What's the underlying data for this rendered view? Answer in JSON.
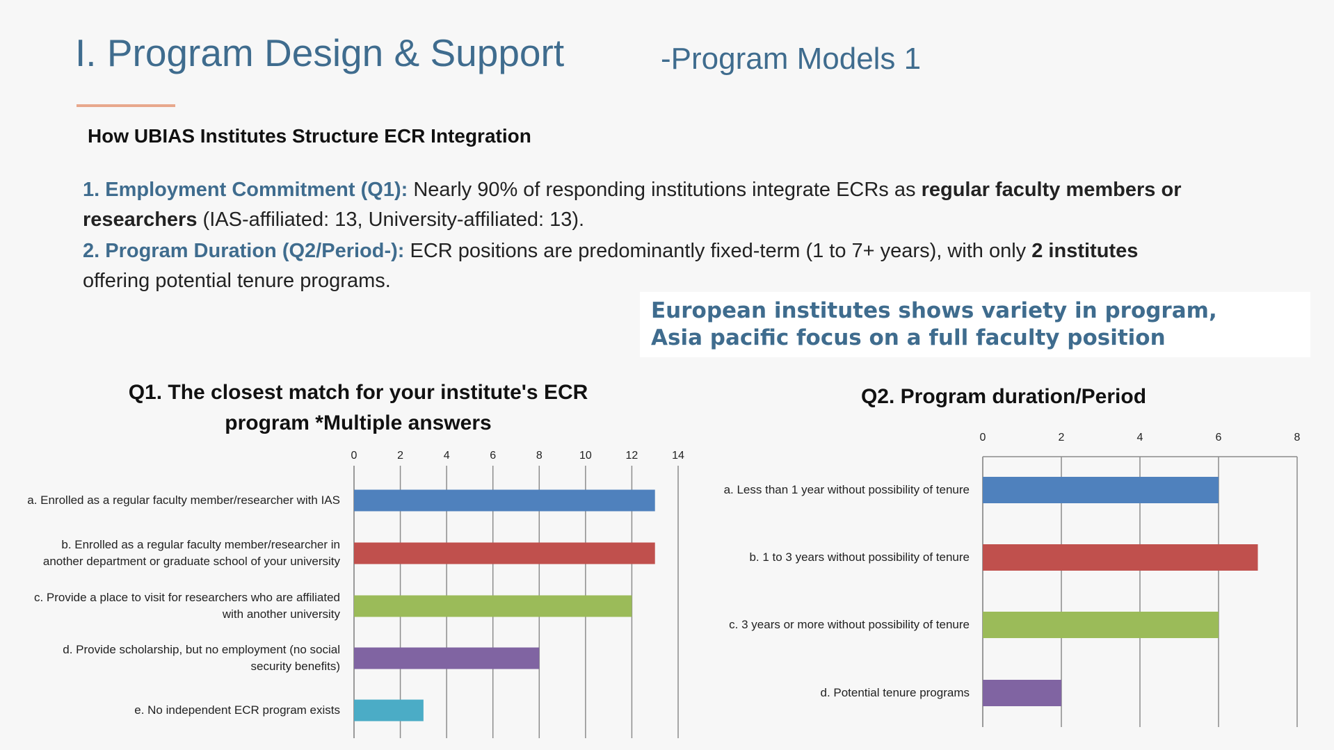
{
  "header": {
    "title": "I. Program Design & Support",
    "subtitle": "-Program Models 1"
  },
  "heading": "How UBIAS Institutes Structure ECR Integration",
  "points": [
    {
      "parts": [
        "1. Employment Commitment (Q1):",
        " Nearly 90% of responding institutions integrate ECRs as ",
        "regular faculty members or researchers",
        " (IAS-affiliated: 13, University-affiliated: 13)."
      ]
    },
    {
      "parts": [
        "2. Program Duration (Q2/Period-):",
        " ECR positions are predominantly fixed-term (1 to 7+ years), with only ",
        "2 institutes",
        " offering potential tenure programs."
      ]
    }
  ],
  "callout": [
    "European institutes shows variety in program,",
    "Asia pacific focus on a full faculty position"
  ],
  "chart_data": [
    {
      "type": "bar",
      "orientation": "horizontal",
      "title": "Q1. The closest match for your institute's ECR program *Multiple answers",
      "categories": [
        "a. Enrolled as a regular faculty member/researcher with IAS",
        "b. Enrolled as a regular faculty member/researcher in another department or graduate school of your university",
        "c. Provide a place to visit for researchers who are affiliated with another university",
        "d. Provide scholarship, but no employment (no social security benefits)",
        "e. No independent ECR program exists"
      ],
      "values": [
        13,
        13,
        12,
        8,
        3
      ],
      "colors": [
        "#4f81bd",
        "#c0504d",
        "#9bbb59",
        "#8064a2",
        "#4bacc6"
      ],
      "xlim": [
        0,
        14
      ],
      "xticks": [
        0,
        2,
        4,
        6,
        8,
        10,
        12,
        14
      ],
      "grid": true
    },
    {
      "type": "bar",
      "orientation": "horizontal",
      "title": "Q2. Program duration/Period",
      "categories": [
        "a. Less than 1 year without possibility of tenure",
        "b. 1 to 3 years without possibility of tenure",
        "c. 3 years or more without possibility of tenure",
        "d. Potential tenure programs"
      ],
      "values": [
        6,
        7,
        6,
        2
      ],
      "colors": [
        "#4f81bd",
        "#c0504d",
        "#9bbb59",
        "#8064a2"
      ],
      "xlim": [
        0,
        8
      ],
      "xticks": [
        0,
        2,
        4,
        6,
        8
      ],
      "grid": true
    }
  ]
}
